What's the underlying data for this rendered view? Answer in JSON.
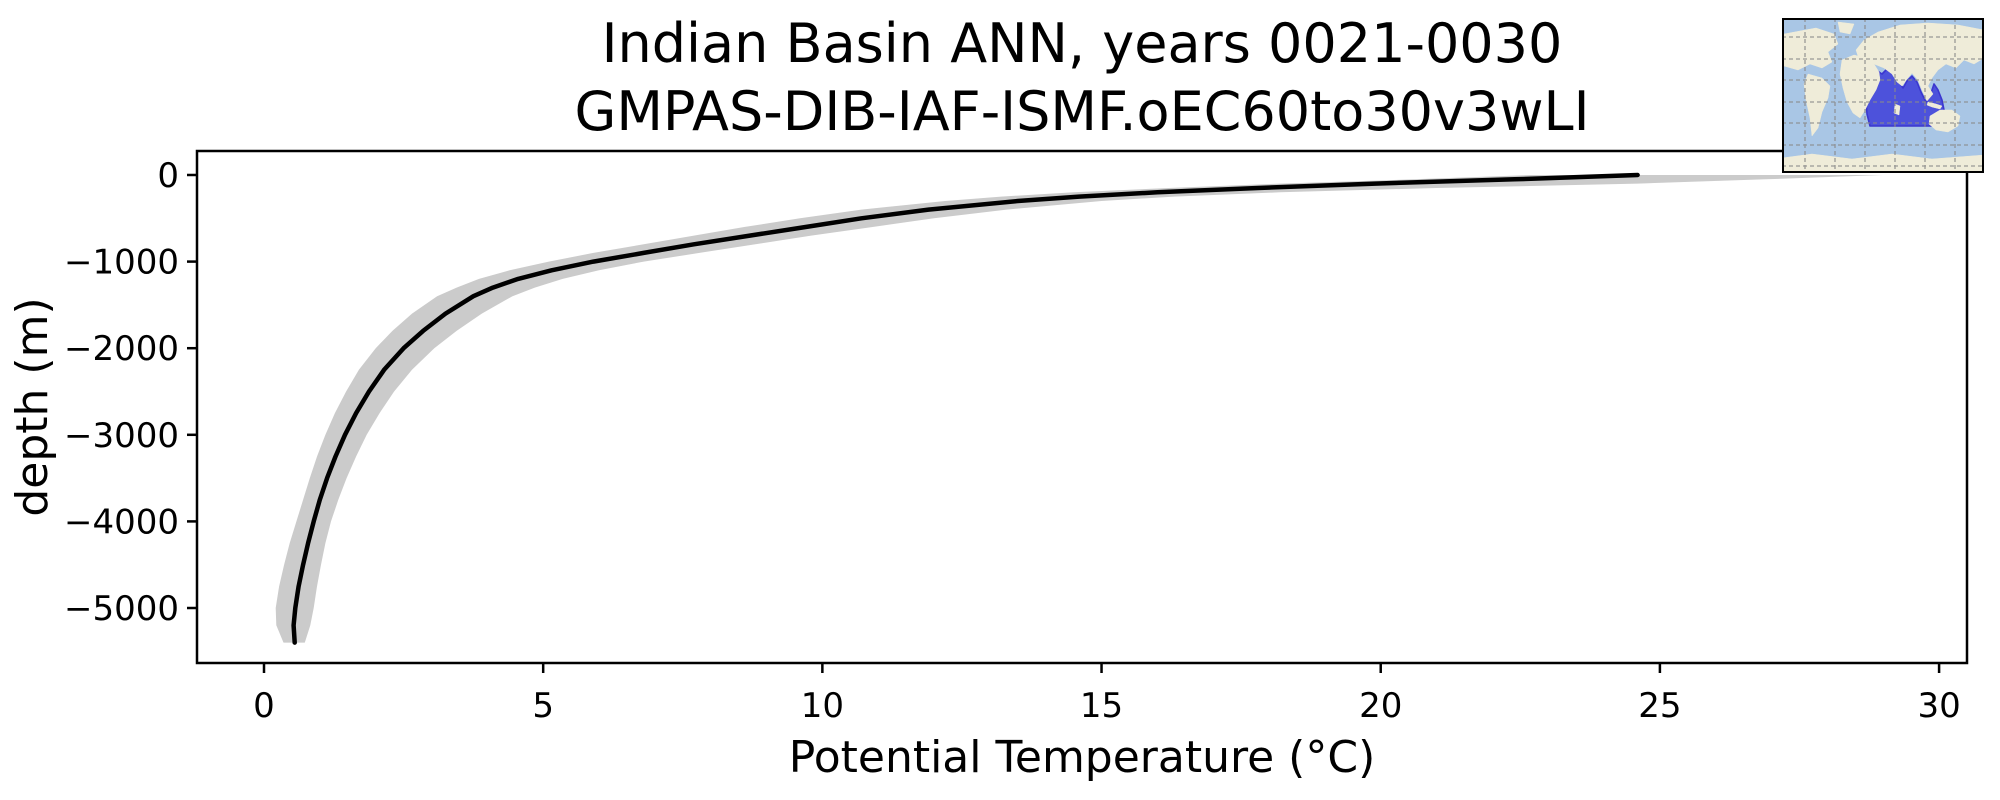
{
  "figure": {
    "title_line1": "Indian Basin ANN, years 0021-0030",
    "title_line2": "GMPAS-DIB-IAF-ISMF.oEC60to30v3wLI",
    "xlabel": "Potential Temperature (°C)",
    "ylabel": "depth (m)"
  },
  "colors": {
    "background": "#ffffff",
    "profile_line": "#000000",
    "uncertainty_band": "#cbcbcb",
    "axis": "#000000",
    "map_ocean": "#a9c6e5",
    "map_land": "#efecd9",
    "map_grid": "#8a8a8a",
    "map_highlight_fill": "#4d52db",
    "map_highlight_edge": "#3b36cf",
    "map_border": "#000000"
  },
  "chart_data": {
    "type": "line",
    "title": "Indian Basin ANN, years 0021-0030\nGMPAS-DIB-IAF-ISMF.oEC60to30v3wLI",
    "xlabel": "Potential Temperature (°C)",
    "ylabel": "depth (m)",
    "x_ticks": [
      0,
      5,
      10,
      15,
      20,
      25,
      30
    ],
    "y_ticks": [
      0,
      -1000,
      -2000,
      -3000,
      -4000,
      -5000
    ],
    "xlim": [
      -1.2,
      30.5
    ],
    "ylim": [
      277,
      -5635
    ],
    "grid": false,
    "legend": "none",
    "inset": "world map with Indian Ocean basin region highlighted",
    "depths_m": [
      0,
      -50,
      -100,
      -150,
      -200,
      -250,
      -300,
      -400,
      -500,
      -600,
      -700,
      -800,
      -900,
      -1000,
      -1100,
      -1200,
      -1300,
      -1400,
      -1600,
      -1800,
      -2000,
      -2250,
      -2500,
      -2750,
      -3000,
      -3250,
      -3500,
      -3750,
      -4000,
      -4250,
      -4500,
      -4750,
      -5000,
      -5200,
      -5400
    ],
    "series": [
      {
        "name": "mean potential temperature (°C)",
        "values": [
          24.6,
          22.4,
          19.9,
          17.8,
          16.0,
          14.6,
          13.5,
          11.9,
          10.7,
          9.7,
          8.7,
          7.7,
          6.8,
          5.9,
          5.15,
          4.55,
          4.1,
          3.75,
          3.25,
          2.85,
          2.5,
          2.15,
          1.88,
          1.65,
          1.45,
          1.28,
          1.13,
          1.0,
          0.89,
          0.79,
          0.7,
          0.62,
          0.56,
          0.53,
          0.55
        ]
      },
      {
        "name": "band lower bound (°C)",
        "values": [
          22.7,
          20.6,
          18.2,
          16.2,
          14.5,
          13.2,
          12.2,
          10.7,
          9.6,
          8.6,
          7.7,
          6.8,
          5.9,
          5.1,
          4.4,
          3.85,
          3.45,
          3.1,
          2.65,
          2.3,
          2.0,
          1.7,
          1.47,
          1.27,
          1.1,
          0.95,
          0.82,
          0.7,
          0.58,
          0.46,
          0.36,
          0.27,
          0.21,
          0.22,
          0.35
        ]
      },
      {
        "name": "band upper bound (°C)",
        "values": [
          29.0,
          26.9,
          24.6,
          21.0,
          18.2,
          16.3,
          15.0,
          13.3,
          12.0,
          10.9,
          9.8,
          8.8,
          7.8,
          6.8,
          6.0,
          5.35,
          4.85,
          4.45,
          3.9,
          3.45,
          3.05,
          2.65,
          2.33,
          2.07,
          1.84,
          1.65,
          1.48,
          1.33,
          1.2,
          1.1,
          1.02,
          0.95,
          0.89,
          0.83,
          0.73
        ]
      }
    ]
  }
}
